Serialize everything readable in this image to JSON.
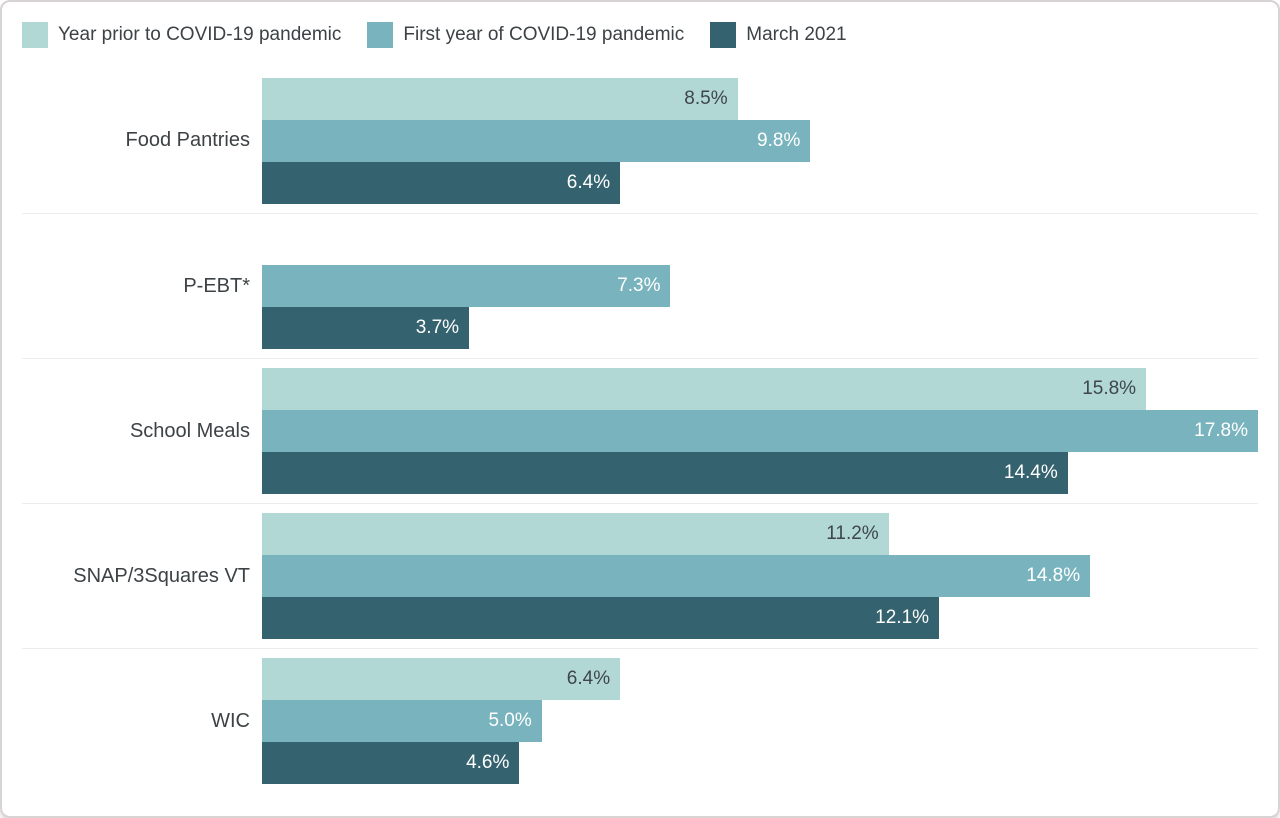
{
  "legend": {
    "items": [
      {
        "label": "Year prior to COVID-19 pandemic",
        "color": "#b2d8d6"
      },
      {
        "label": "First year of COVID-19 pandemic",
        "color": "#79b4be"
      },
      {
        "label": "March 2021",
        "color": "#34626e"
      }
    ]
  },
  "chart_data": {
    "type": "bar",
    "orientation": "horizontal",
    "categories": [
      "Food Pantries",
      "P-EBT*",
      "School Meals",
      "SNAP/3Squares VT",
      "WIC"
    ],
    "series": [
      {
        "name": "Year prior to COVID-19 pandemic",
        "color": "#b2d8d6",
        "label_color": "#3e4649",
        "values": [
          8.5,
          null,
          15.8,
          11.2,
          6.4
        ]
      },
      {
        "name": "First year of COVID-19 pandemic",
        "color": "#79b4be",
        "label_color": "#ffffff",
        "values": [
          9.8,
          7.3,
          17.8,
          14.8,
          5.0
        ]
      },
      {
        "name": "March 2021",
        "color": "#34626e",
        "label_color": "#ffffff",
        "values": [
          6.4,
          3.7,
          14.4,
          12.1,
          4.6
        ]
      }
    ],
    "value_suffix": "%",
    "value_decimals": 1,
    "xlim": [
      0,
      17.8
    ],
    "grid": false,
    "legend_position": "top",
    "colors": {
      "category_label": "#3c4245",
      "separator": "#ededed",
      "card_border": "#d9d4d4",
      "background": "#ffffff"
    }
  }
}
